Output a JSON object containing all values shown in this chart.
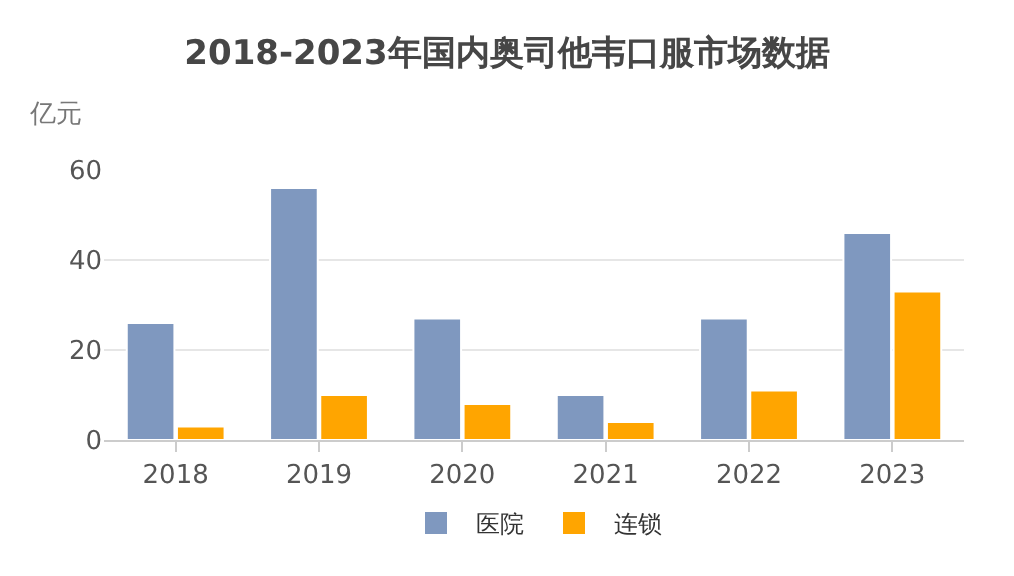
{
  "chart_data": {
    "type": "bar",
    "title": "2018-2023年国内奥司他韦口服市场数据",
    "ylabel": "亿元",
    "categories": [
      "2018",
      "2019",
      "2020",
      "2021",
      "2022",
      "2023"
    ],
    "series": [
      {
        "name": "医院",
        "color": "#7f98bf",
        "values": [
          26,
          56,
          27,
          10,
          27,
          46
        ]
      },
      {
        "name": "连锁",
        "color": "#ffa500",
        "values": [
          3,
          10,
          8,
          4,
          11,
          33
        ]
      }
    ],
    "ylim": [
      0,
      60
    ],
    "yticks": [
      0,
      20,
      40,
      60
    ],
    "grid": "y",
    "legend": "bottom"
  }
}
